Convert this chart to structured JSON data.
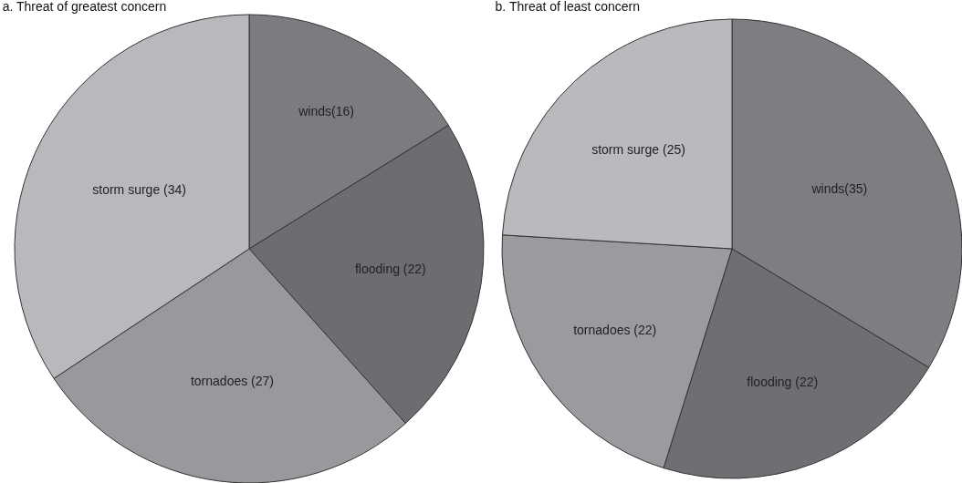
{
  "chart_data": [
    {
      "type": "pie",
      "title": "a. Threat of greatest concern",
      "categories": [
        "winds(16)",
        "flooding (22)",
        "tornadoes (27)",
        "storm surge (34)"
      ],
      "values": [
        16,
        22,
        27,
        34
      ],
      "colors": [
        "#7b7c80",
        "#6c6d71",
        "#98999d",
        "#b8b9bd"
      ],
      "legend": false
    },
    {
      "type": "pie",
      "title": "b. Threat of least concern",
      "categories": [
        "winds(35)",
        "flooding (22)",
        "tornadoes (22)",
        "storm surge (25)"
      ],
      "values": [
        35,
        22,
        22,
        25
      ],
      "colors": [
        "#7d7e82",
        "#6e6f73",
        "#9a9b9f",
        "#b9babe"
      ],
      "legend": false
    }
  ]
}
